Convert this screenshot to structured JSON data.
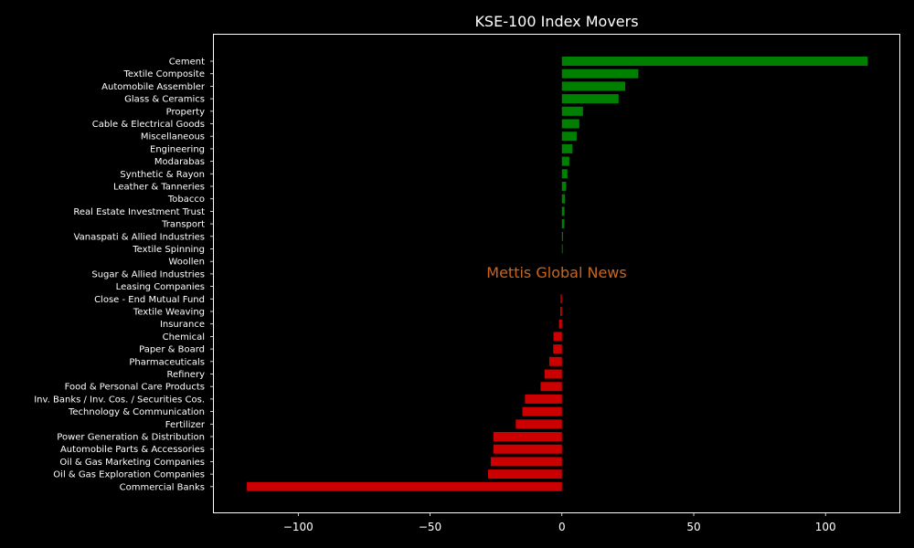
{
  "chart_data": {
    "type": "bar",
    "orientation": "horizontal",
    "title": "KSE-100 Index Movers",
    "watermark": "Mettis Global News",
    "xlabel": "",
    "ylabel": "",
    "xlim": [
      -132,
      128
    ],
    "xticks": [
      -100,
      -50,
      0,
      50,
      100
    ],
    "xtick_labels": [
      "−100",
      "−50",
      "0",
      "50",
      "100"
    ],
    "grid": false,
    "legend": "none",
    "colors": {
      "background": "#000000",
      "positive": "#008000",
      "negative": "#cc0000",
      "text": "#ffffff",
      "watermark": "#c8661e",
      "axis": "#ffffff"
    },
    "categories": [
      "Cement",
      "Textile Composite",
      "Automobile Assembler",
      "Glass & Ceramics",
      "Property",
      "Cable & Electrical Goods",
      "Miscellaneous",
      "Engineering",
      "Modarabas",
      "Synthetic & Rayon",
      "Leather & Tanneries",
      "Tobacco",
      "Real Estate Investment Trust",
      "Transport",
      "Vanaspati & Allied Industries",
      "Textile Spinning",
      "Woollen",
      "Sugar & Allied Industries",
      "Leasing Companies",
      "Close - End Mutual Fund",
      "Textile Weaving",
      "Insurance",
      "Chemical",
      "Paper & Board",
      "Pharmaceuticals",
      "Refinery",
      "Food & Personal Care Products",
      "Inv. Banks / Inv. Cos. / Securities Cos.",
      "Technology & Communication",
      "Fertilizer",
      "Power Generation & Distribution",
      "Automobile Parts & Accessories",
      "Oil & Gas Marketing Companies",
      "Oil & Gas Exploration Companies",
      "Commercial Banks"
    ],
    "values": [
      116,
      29,
      24,
      21.5,
      8,
      6.6,
      5.6,
      4,
      2.8,
      2.1,
      1.6,
      1.2,
      1.0,
      0.9,
      0.4,
      0.3,
      0,
      0,
      0,
      -0.5,
      -0.6,
      -1.1,
      -3.2,
      -3.3,
      -4.8,
      -6.6,
      -8.1,
      -14,
      -15,
      -17.5,
      -26,
      -26,
      -27,
      -28,
      -119.5
    ]
  }
}
